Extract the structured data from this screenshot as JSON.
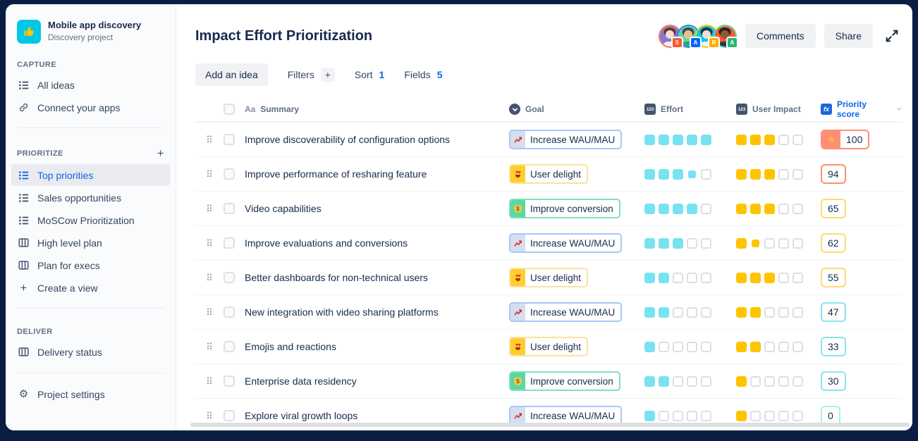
{
  "sidebar": {
    "project": {
      "name": "Mobile app discovery",
      "type": "Discovery project"
    },
    "sections": [
      {
        "label": "CAPTURE",
        "add": false,
        "items": [
          {
            "label": "All ideas",
            "icon": "list",
            "selected": false
          },
          {
            "label": "Connect your apps",
            "icon": "link",
            "selected": false
          }
        ]
      },
      {
        "label": "PRIORITIZE",
        "add": true,
        "items": [
          {
            "label": "Top priorities",
            "icon": "list",
            "selected": true
          },
          {
            "label": "Sales opportunities",
            "icon": "list",
            "selected": false
          },
          {
            "label": "MoSCow Prioritization",
            "icon": "list",
            "selected": false
          },
          {
            "label": "High level plan",
            "icon": "board",
            "selected": false
          },
          {
            "label": "Plan for execs",
            "icon": "board",
            "selected": false
          },
          {
            "label": "Create a view",
            "icon": "plus",
            "selected": false
          }
        ]
      },
      {
        "label": "DELIVER",
        "add": false,
        "items": [
          {
            "label": "Delivery status",
            "icon": "board",
            "selected": false
          }
        ]
      }
    ],
    "settings_label": "Project settings"
  },
  "header": {
    "title": "Impact Effort Prioritization",
    "comments_label": "Comments",
    "share_label": "Share",
    "avatars": [
      {
        "badge": "S",
        "ring": "#FF7452",
        "bg": "#8777D9",
        "skin": "#F6DECC",
        "hair": "#6B3B1F",
        "shirt": "#EDEFF5",
        "badge_bg": "#FF5630"
      },
      {
        "badge": "A",
        "ring": "#2684FF",
        "bg": "#57D9A3",
        "skin": "#EDBD8F",
        "hair": "#3E4A5A",
        "shirt": "#2FA47C",
        "badge_bg": "#0065FF"
      },
      {
        "badge": "R",
        "ring": "#FFC400",
        "bg": "#00C7E6",
        "skin": "#F6DECC",
        "hair": "#22324F",
        "shirt": "#F2F4F7",
        "badge_bg": "#FFAB00"
      },
      {
        "badge": "A",
        "ring": "#57D9A3",
        "bg": "#FF5630",
        "skin": "#8A5A3B",
        "hair": "#20242B",
        "shirt": "#2B3A55",
        "badge_bg": "#2BB673"
      }
    ]
  },
  "toolbar": {
    "add_idea": "Add an idea",
    "filters": "Filters",
    "sort": "Sort",
    "sort_count": "1",
    "fields": "Fields",
    "fields_count": "5"
  },
  "table": {
    "columns": {
      "summary_icon": "Aa",
      "summary": "Summary",
      "goal": "Goal",
      "effort_icon": "123",
      "effort": "Effort",
      "impact_icon": "123",
      "user_impact": "User Impact",
      "priority_icon": "fx",
      "priority": "Priority score"
    },
    "goal_types": {
      "wau": {
        "label": "Increase WAU/MAU",
        "border": "#A7C7F9",
        "icon_bg": "#D5DEF0",
        "glyph": "chart"
      },
      "delight": {
        "label": "User delight",
        "border": "#F7E3A1",
        "icon_bg": "#FFCE2E",
        "glyph": "heart-eyes"
      },
      "conversion": {
        "label": "Improve conversion",
        "border": "#7EE2B8",
        "icon_bg": "#57D9A3",
        "glyph": "money-bag"
      }
    },
    "score_tiers": {
      "red": "#FF8F73",
      "yellow": "#FFDB73",
      "cyan": "#8BE2EF",
      "green": "#ABF5D1"
    },
    "rating_colors": {
      "effort": "#79E2F2",
      "impact": "#FFC400",
      "empty": "#DCDFE4"
    },
    "rows": [
      {
        "summary": "Improve discoverability of configuration options",
        "goal": "wau",
        "effort": [
          1,
          1,
          1,
          1,
          1
        ],
        "impact": [
          1,
          1,
          1,
          0,
          0
        ],
        "score": "100",
        "tier": "red",
        "starred": true
      },
      {
        "summary": "Improve performance of resharing feature",
        "goal": "delight",
        "effort": [
          1,
          1,
          1,
          0.5,
          0
        ],
        "impact": [
          1,
          1,
          1,
          0,
          0
        ],
        "score": "94",
        "tier": "red",
        "starred": false
      },
      {
        "summary": "Video capabilities",
        "goal": "conversion",
        "effort": [
          1,
          1,
          1,
          1,
          0
        ],
        "impact": [
          1,
          1,
          1,
          0,
          0
        ],
        "score": "65",
        "tier": "yellow",
        "starred": false
      },
      {
        "summary": "Improve evaluations and conversions",
        "goal": "wau",
        "effort": [
          1,
          1,
          1,
          0,
          0
        ],
        "impact": [
          1,
          0.5,
          0,
          0,
          0
        ],
        "score": "62",
        "tier": "yellow",
        "starred": false
      },
      {
        "summary": "Better dashboards for non-technical users",
        "goal": "delight",
        "effort": [
          1,
          1,
          0,
          0,
          0
        ],
        "impact": [
          1,
          1,
          1,
          0,
          0
        ],
        "score": "55",
        "tier": "yellow",
        "starred": false
      },
      {
        "summary": "New integration with video sharing platforms",
        "goal": "wau",
        "effort": [
          1,
          1,
          0,
          0,
          0
        ],
        "impact": [
          1,
          1,
          0,
          0,
          0
        ],
        "score": "47",
        "tier": "cyan",
        "starred": false
      },
      {
        "summary": "Emojis and reactions",
        "goal": "delight",
        "effort": [
          1,
          0,
          0,
          0,
          0
        ],
        "impact": [
          1,
          1,
          0,
          0,
          0
        ],
        "score": "33",
        "tier": "cyan",
        "starred": false
      },
      {
        "summary": "Enterprise data residency",
        "goal": "conversion",
        "effort": [
          1,
          1,
          0,
          0,
          0
        ],
        "impact": [
          1,
          0,
          0,
          0,
          0
        ],
        "score": "30",
        "tier": "cyan",
        "starred": false
      },
      {
        "summary": "Explore viral growth loops",
        "goal": "wau",
        "effort": [
          1,
          0,
          0,
          0,
          0
        ],
        "impact": [
          1,
          0,
          0,
          0,
          0
        ],
        "score": "0",
        "tier": "green",
        "starred": false
      }
    ]
  }
}
